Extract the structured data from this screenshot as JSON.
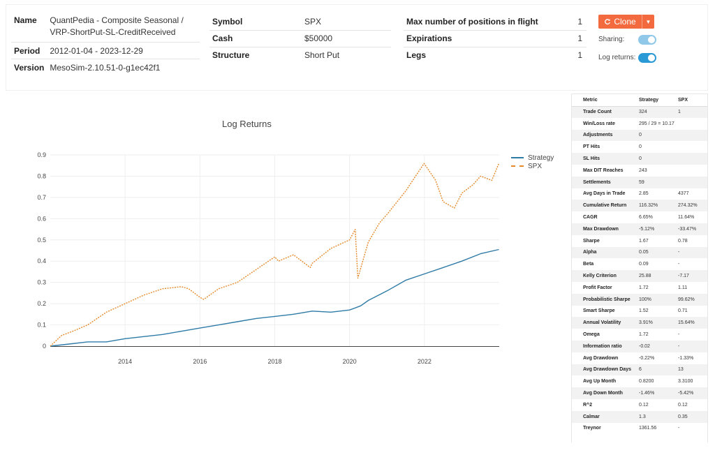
{
  "summary": {
    "name_label": "Name",
    "name_value": "QuantPedia - Composite Seasonal / VRP-ShortPut-SL-CreditReceived",
    "period_label": "Period",
    "period_value": "2012-01-04 - 2023-12-29",
    "version_label": "Version",
    "version_value": "MesoSim-2.10.51-0-g1ec42f1",
    "symbol_label": "Symbol",
    "symbol_value": "SPX",
    "cash_label": "Cash",
    "cash_value": "$50000",
    "structure_label": "Structure",
    "structure_value": "Short Put",
    "max_positions_label": "Max number of positions in flight",
    "max_positions_value": "1",
    "expirations_label": "Expirations",
    "expirations_value": "1",
    "legs_label": "Legs",
    "legs_value": "1"
  },
  "actions": {
    "clone_label": "Clone",
    "sharing_label": "Sharing:",
    "sharing_on": true,
    "log_returns_label": "Log returns:",
    "log_returns_on": true
  },
  "colors": {
    "strategy": "#2e7ba6",
    "spx": "#e58a2a",
    "accent": "#f26a3d"
  },
  "chart_data": {
    "type": "line",
    "title": "Log Returns",
    "xlabel": "",
    "ylabel": "",
    "xlim": [
      2012.0,
      2024.0
    ],
    "ylim": [
      0,
      0.9
    ],
    "x_ticks": [
      "2014",
      "2016",
      "2018",
      "2020",
      "2022"
    ],
    "y_ticks": [
      "0",
      "0.1",
      "0.2",
      "0.3",
      "0.4",
      "0.5",
      "0.6",
      "0.7",
      "0.8",
      "0.9"
    ],
    "legend_position": "top-right",
    "grid": true,
    "series": [
      {
        "name": "Strategy",
        "style": "solid",
        "x": [
          2012.0,
          2012.5,
          2013.0,
          2013.5,
          2014.0,
          2014.5,
          2015.0,
          2015.5,
          2016.0,
          2016.5,
          2017.0,
          2017.5,
          2018.0,
          2018.5,
          2019.0,
          2019.5,
          2020.0,
          2020.3,
          2020.5,
          2021.0,
          2021.5,
          2022.0,
          2022.5,
          2023.0,
          2023.5,
          2023.99
        ],
        "y": [
          0.0,
          0.01,
          0.02,
          0.02,
          0.035,
          0.045,
          0.055,
          0.07,
          0.085,
          0.1,
          0.115,
          0.13,
          0.14,
          0.15,
          0.165,
          0.16,
          0.17,
          0.19,
          0.215,
          0.26,
          0.31,
          0.34,
          0.37,
          0.4,
          0.435,
          0.455
        ]
      },
      {
        "name": "SPX",
        "style": "dashed",
        "x": [
          2012.0,
          2012.3,
          2012.6,
          2013.0,
          2013.5,
          2014.0,
          2014.5,
          2015.0,
          2015.5,
          2015.7,
          2016.0,
          2016.1,
          2016.5,
          2017.0,
          2017.5,
          2018.0,
          2018.1,
          2018.5,
          2018.95,
          2019.0,
          2019.5,
          2020.0,
          2020.15,
          2020.22,
          2020.5,
          2020.8,
          2021.0,
          2021.5,
          2021.99,
          2022.3,
          2022.5,
          2022.8,
          2023.0,
          2023.3,
          2023.5,
          2023.8,
          2023.99
        ],
        "y": [
          0.0,
          0.05,
          0.07,
          0.1,
          0.16,
          0.2,
          0.24,
          0.27,
          0.28,
          0.27,
          0.23,
          0.22,
          0.27,
          0.3,
          0.36,
          0.42,
          0.4,
          0.43,
          0.37,
          0.39,
          0.46,
          0.5,
          0.55,
          0.32,
          0.49,
          0.58,
          0.62,
          0.73,
          0.86,
          0.78,
          0.68,
          0.65,
          0.72,
          0.76,
          0.8,
          0.78,
          0.86
        ]
      }
    ]
  },
  "metrics": {
    "headers": [
      "Metric",
      "Strategy",
      "SPX"
    ],
    "rows": [
      [
        "Trade Count",
        "324",
        "1"
      ],
      [
        "Win/Loss rate",
        "295 / 29 = 10.17",
        ""
      ],
      [
        "Adjustments",
        "0",
        ""
      ],
      [
        "PT Hits",
        "0",
        ""
      ],
      [
        "SL Hits",
        "0",
        ""
      ],
      [
        "Max DIT Reaches",
        "243",
        ""
      ],
      [
        "Settlements",
        "59",
        ""
      ],
      [
        "Avg Days in Trade",
        "2.85",
        "4377"
      ],
      [
        "Cumulative Return",
        "116.32%",
        "274.32%"
      ],
      [
        "CAGR",
        "6.65%",
        "11.64%"
      ],
      [
        "Max Drawdown",
        "-5.12%",
        "-33.47%"
      ],
      [
        "Sharpe",
        "1.67",
        "0.78"
      ],
      [
        "Alpha",
        "0.05",
        "-"
      ],
      [
        "Beta",
        "0.09",
        "-"
      ],
      [
        "Kelly Criterion",
        "25.88",
        "-7.17"
      ],
      [
        "Profit Factor",
        "1.72",
        "1.11"
      ],
      [
        "Probabilistic Sharpe",
        "100%",
        "99.62%"
      ],
      [
        "Smart Sharpe",
        "1.52",
        "0.71"
      ],
      [
        "Annual Volatility",
        "3.91%",
        "15.64%"
      ],
      [
        "Omega",
        "1.72",
        "-"
      ],
      [
        "Information ratio",
        "-0.02",
        "-"
      ],
      [
        "Avg Drawdown",
        "-0.22%",
        "-1.33%"
      ],
      [
        "Avg Drawdown Days",
        "6",
        "13"
      ],
      [
        "Avg Up Month",
        "0.8200",
        "3.3100"
      ],
      [
        "Avg Down Month",
        "-1.46%",
        "-5.42%"
      ],
      [
        "R^2",
        "0.12",
        "0.12"
      ],
      [
        "Calmar",
        "1.3",
        "0.35"
      ],
      [
        "Treynor",
        "1361.56",
        "-"
      ]
    ]
  }
}
